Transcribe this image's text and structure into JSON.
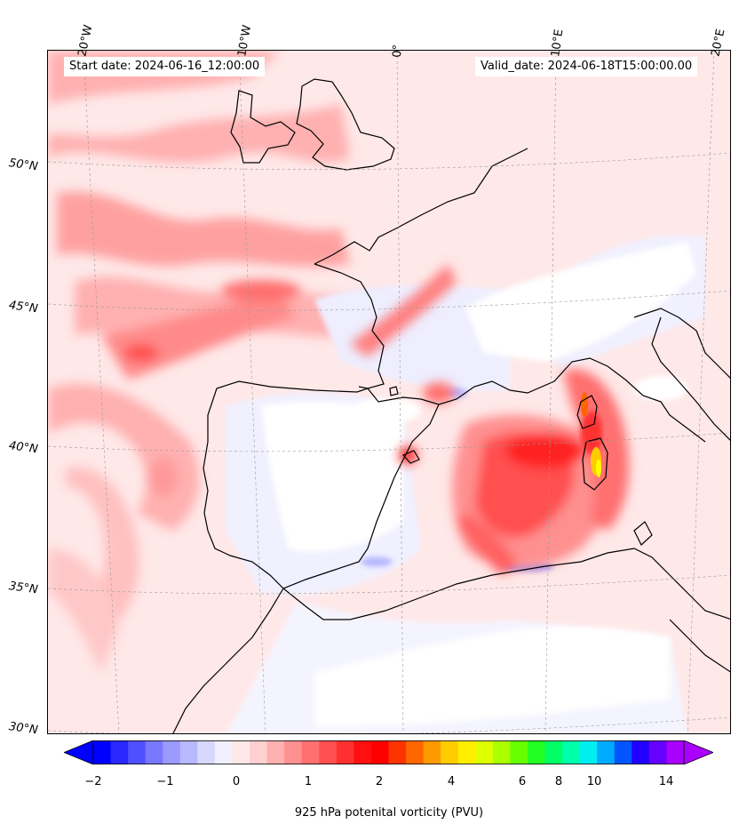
{
  "header": {
    "start_date": "Start date: 2024-06-16_12:00:00",
    "valid_date": "Valid_date: 2024-06-18T15:00:00.00"
  },
  "longitude_labels": [
    "20°W",
    "10°W",
    "0°",
    "10°E",
    "20°E"
  ],
  "latitude_labels": [
    "50°N",
    "45°N",
    "40°N",
    "35°N",
    "30°N"
  ],
  "colorbar": {
    "label": "925 hPa potenital vorticity (PVU)",
    "tick_labels": [
      "−2",
      "−1",
      "0",
      "1",
      "2",
      "4",
      "6",
      "8",
      "10",
      "14"
    ],
    "colors": [
      "#0000ff",
      "#2828ff",
      "#5050ff",
      "#7878ff",
      "#9a9aff",
      "#b8b8ff",
      "#d8d8ff",
      "#f0f0ff",
      "#ffe8e8",
      "#ffd0d0",
      "#ffb0b0",
      "#ff9090",
      "#ff7070",
      "#ff5050",
      "#ff3030",
      "#ff1010",
      "#ff0000",
      "#ff3300",
      "#ff6600",
      "#ff9900",
      "#ffcc00",
      "#ffee00",
      "#ddff00",
      "#aaff00",
      "#66ff00",
      "#22ff22",
      "#00ff66",
      "#00ffaa",
      "#00eeee",
      "#00aaff",
      "#0055ff",
      "#2200ff",
      "#6600ff",
      "#aa00ff"
    ],
    "under_color": "#0000ff",
    "over_color": "#aa00ff"
  }
}
